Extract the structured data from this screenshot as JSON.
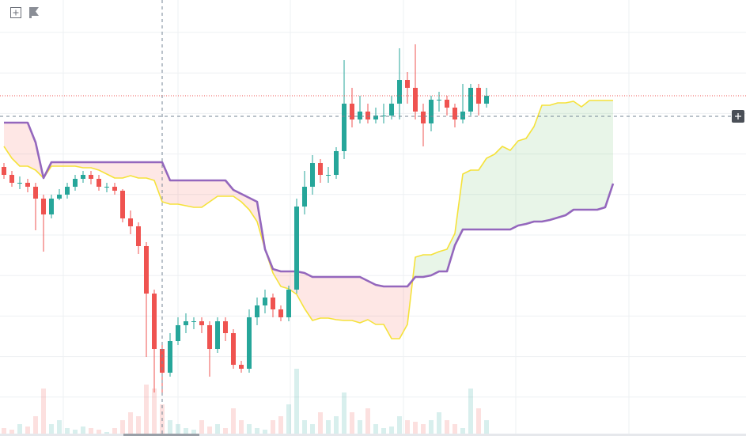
{
  "chart_data": {
    "type": "candlestick",
    "up_color": "#26a69a",
    "down_color": "#ef5350",
    "ylim": [
      0,
      551
    ],
    "grid": true,
    "open": [
      340,
      330,
      320,
      320,
      315,
      300,
      280,
      300,
      305,
      315,
      325,
      330,
      325,
      315,
      315,
      310,
      275,
      265,
      240,
      180,
      110,
      80,
      120,
      140,
      145,
      145,
      140,
      110,
      145,
      130,
      90,
      85,
      150,
      165,
      175,
      160,
      150,
      185,
      290,
      315,
      345,
      330,
      330,
      360,
      420,
      400,
      410,
      400,
      405,
      405,
      420,
      450,
      440,
      410,
      395,
      425,
      425,
      415,
      400,
      410,
      440,
      420
    ],
    "high": [
      345,
      335,
      328,
      325,
      320,
      305,
      305,
      312,
      320,
      330,
      335,
      335,
      330,
      320,
      320,
      312,
      285,
      270,
      245,
      185,
      115,
      130,
      150,
      155,
      150,
      150,
      145,
      150,
      150,
      135,
      95,
      160,
      175,
      185,
      180,
      165,
      190,
      300,
      335,
      355,
      350,
      340,
      365,
      475,
      440,
      430,
      420,
      415,
      420,
      430,
      490,
      460,
      495,
      420,
      430,
      435,
      430,
      420,
      445,
      445,
      445,
      440
    ],
    "low": [
      325,
      315,
      312,
      308,
      260,
      233,
      275,
      298,
      300,
      310,
      320,
      318,
      310,
      308,
      305,
      270,
      255,
      230,
      100,
      55,
      51,
      75,
      115,
      130,
      135,
      130,
      75,
      105,
      120,
      85,
      80,
      80,
      140,
      155,
      150,
      145,
      145,
      180,
      280,
      305,
      320,
      320,
      325,
      350,
      390,
      395,
      395,
      395,
      395,
      400,
      400,
      420,
      400,
      366,
      385,
      410,
      405,
      390,
      395,
      405,
      405,
      415
    ],
    "close": [
      330,
      320,
      320,
      315,
      300,
      280,
      300,
      305,
      315,
      325,
      330,
      325,
      315,
      315,
      310,
      275,
      265,
      240,
      180,
      110,
      80,
      120,
      140,
      145,
      145,
      140,
      110,
      145,
      130,
      90,
      85,
      150,
      165,
      175,
      160,
      150,
      185,
      290,
      315,
      345,
      330,
      330,
      360,
      420,
      400,
      410,
      400,
      405,
      405,
      420,
      450,
      440,
      410,
      395,
      425,
      425,
      415,
      400,
      410,
      440,
      420,
      430
    ],
    "ichimoku": {
      "bull_cloud": "rgba(76,175,80,0.13)",
      "bear_cloud": "rgba(244,67,54,0.13)",
      "span_a": {
        "color": "#f5e23a",
        "values": [
          366,
          351,
          341,
          341,
          336,
          326,
          341,
          341,
          341,
          341,
          339,
          339,
          336,
          331,
          326,
          326,
          329,
          326,
          326,
          323,
          296,
          293,
          293,
          291,
          289,
          289,
          296,
          303,
          303,
          303,
          296,
          286,
          271,
          236,
          206,
          189,
          186,
          179,
          161,
          146,
          149,
          149,
          147,
          146,
          146,
          143,
          147,
          141,
          141,
          123,
          123,
          141,
          226,
          229,
          229,
          233,
          236,
          256,
          331,
          336,
          336,
          351,
          356,
          366,
          361,
          373,
          376,
          391,
          418,
          418,
          421,
          421,
          423,
          416,
          424,
          424,
          424,
          424
        ]
      },
      "span_b": {
        "color": "#9467bd",
        "values": [
          396,
          396,
          396,
          396,
          371,
          326,
          346,
          346,
          346,
          346,
          346,
          346,
          346,
          346,
          346,
          346,
          346,
          346,
          346,
          346,
          346,
          323,
          323,
          323,
          323,
          323,
          323,
          323,
          323,
          311,
          306,
          301,
          296,
          236,
          211,
          208,
          208,
          208,
          206,
          201,
          201,
          201,
          201,
          201,
          201,
          201,
          196,
          191,
          189,
          189,
          189,
          189,
          201,
          201,
          203,
          208,
          208,
          241,
          261,
          261,
          261,
          261,
          261,
          261,
          261,
          266,
          268,
          271,
          271,
          273,
          276,
          279,
          286,
          286,
          286,
          286,
          289,
          319
        ]
      }
    },
    "volume": {
      "ylim": [
        0,
        100
      ],
      "up_color": "rgba(38,166,154,0.18)",
      "down_color": "rgba(239,83,80,0.18)",
      "values": [
        10,
        8,
        15,
        12,
        25,
        60,
        15,
        20,
        10,
        8,
        12,
        10,
        8,
        5,
        10,
        20,
        30,
        25,
        65,
        60,
        40,
        20,
        15,
        10,
        8,
        20,
        12,
        15,
        10,
        35,
        20,
        15,
        10,
        8,
        20,
        25,
        40,
        85,
        20,
        15,
        30,
        20,
        25,
        55,
        30,
        20,
        35,
        15,
        10,
        12,
        25,
        20,
        18,
        15,
        20,
        30,
        20,
        15,
        10,
        60,
        35,
        20
      ]
    }
  }
}
